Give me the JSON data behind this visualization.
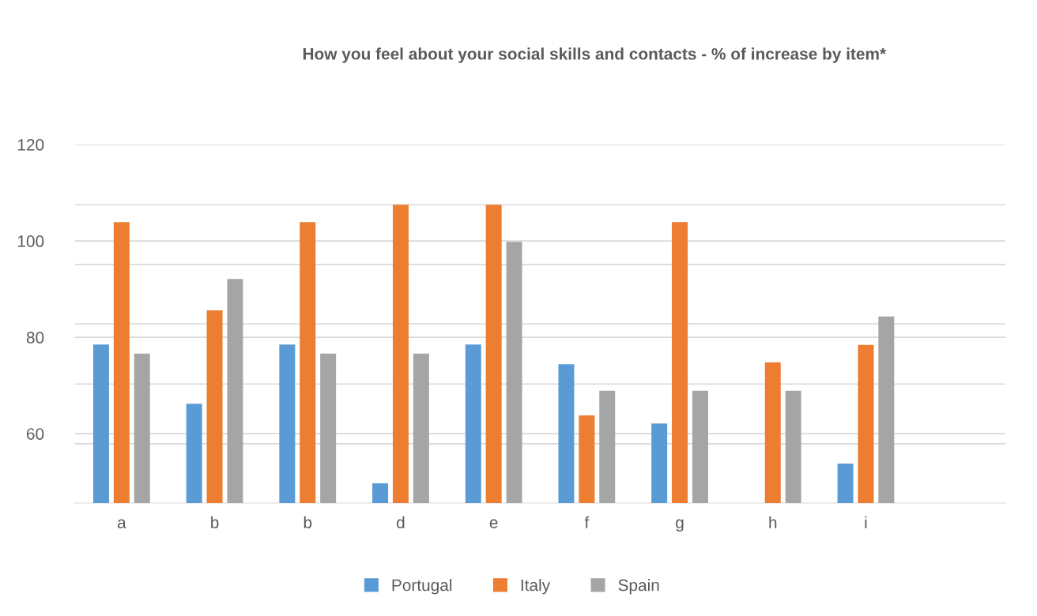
{
  "chart_data": {
    "type": "bar",
    "title": "How you feel about your social skills and contacts - % of increase by item*",
    "categories": [
      "a",
      "b",
      "b",
      "d",
      "e",
      "f",
      "g",
      "h",
      "i",
      null
    ],
    "series": [
      {
        "name": "Portugal",
        "color": "#5b9bd5",
        "values": [
          78.5,
          66.2,
          78.5,
          49.7,
          78.5,
          74.4,
          62.1,
          null,
          53.8,
          null
        ]
      },
      {
        "name": "Italy",
        "color": "#ed7d31",
        "values": [
          103.9,
          85.6,
          103.9,
          107.5,
          107.5,
          63.8,
          103.9,
          74.8,
          78.4,
          null
        ]
      },
      {
        "name": "Spain",
        "color": "#a5a5a5",
        "values": [
          76.6,
          92.1,
          76.6,
          76.6,
          99.8,
          68.9,
          68.9,
          68.9,
          84.3,
          null
        ]
      }
    ],
    "ylim": [
      45.6,
      120
    ],
    "yticks": [
      60,
      80,
      100,
      120,
      {
        "value": 57.9,
        "label": null
      },
      {
        "value": 70.3,
        "label": null
      },
      {
        "value": 82.8,
        "label": null
      },
      {
        "value": 95.1,
        "label": null
      },
      {
        "value": 107.5,
        "label": null
      }
    ],
    "grid": "y",
    "legend": "bottom"
  }
}
